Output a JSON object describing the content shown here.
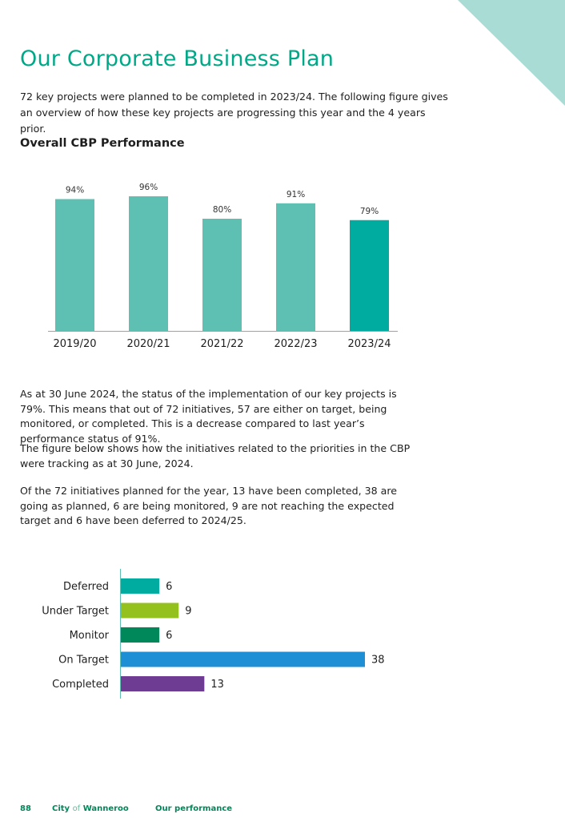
{
  "page": {
    "title": "Our Corporate Business Plan",
    "intro": "72 key projects were planned to be completed in 2023/24. The following figure gives an overview of how these key projects are progressing this year and the 4 years prior.",
    "section_title": "Overall CBP Performance",
    "paragraph_1": "As at 30 June 2024, the status of the implementation of our key projects is 79%. This means that out of 72 initiatives, 57 are either on target, being monitored, or completed. This is a decrease compared to last year’s performance status of 91%.",
    "paragraph_2": "The figure below shows how the initiatives related to the priorities in the CBP were tracking as at 30 June, 2024.",
    "paragraph_3": "Of the 72 initiatives planned for the year, 13 have been completed, 38 are going as planned, 6 are being monitored, 9 are not reaching the expected target and 6 have been deferred to 2024/25."
  },
  "footer": {
    "page_number": "88",
    "org_city": "City",
    "org_of": "of",
    "org_name": "Wanneroo",
    "section": "Our performance"
  },
  "colors": {
    "accent": "#00a887",
    "corner": "#a8dcd4",
    "bar_past": "#5ebfb3",
    "bar_current": "#00ac9f",
    "axis": "#5ebfb3"
  },
  "chart_data": [
    {
      "type": "bar",
      "title": "Overall CBP Performance",
      "categories": [
        "2019/20",
        "2020/21",
        "2021/22",
        "2022/23",
        "2023/24"
      ],
      "values": [
        94,
        96,
        80,
        91,
        79
      ],
      "labels": [
        "94%",
        "96%",
        "80%",
        "91%",
        "79%"
      ],
      "ylim": [
        0,
        100
      ],
      "colors": [
        "#5ebfb3",
        "#5ebfb3",
        "#5ebfb3",
        "#5ebfb3",
        "#00ac9f"
      ],
      "xlabel": "",
      "ylabel": ""
    },
    {
      "type": "bar",
      "orientation": "horizontal",
      "categories": [
        "Deferred",
        "Under Target",
        "Monitor",
        "On Target",
        "Completed"
      ],
      "values": [
        6,
        9,
        6,
        38,
        13
      ],
      "colors": [
        "#00ac9f",
        "#95c11f",
        "#00875a",
        "#1e8fd5",
        "#6f3c93"
      ],
      "xlim": [
        0,
        38
      ]
    }
  ]
}
